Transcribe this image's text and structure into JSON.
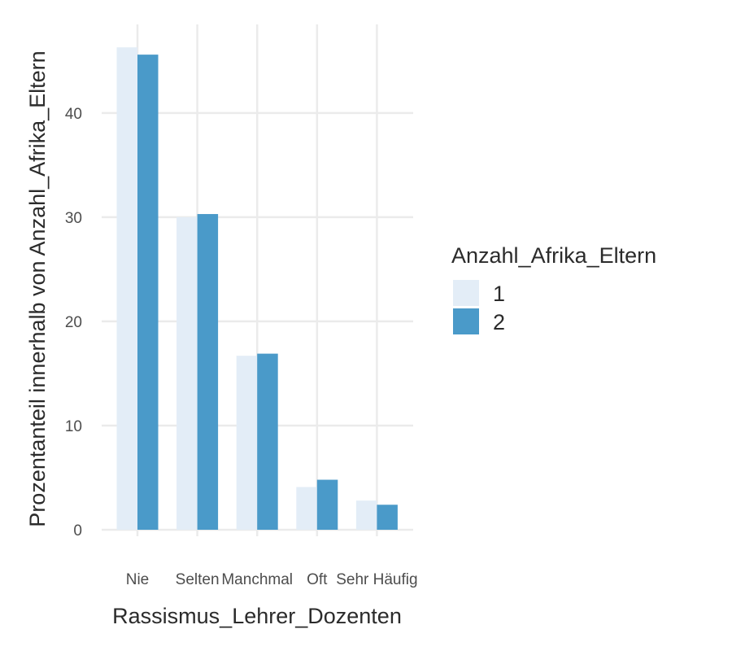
{
  "chart_data": {
    "type": "bar",
    "xlabel": "Rassismus_Lehrer_Dozenten",
    "ylabel": "Prozentanteil innerhalb von Anzahl_Afrika_Eltern",
    "categories": [
      "Nie",
      "Selten",
      "Manchmal",
      "Oft",
      "Sehr Häufig"
    ],
    "series": [
      {
        "name": "1",
        "values": [
          46.3,
          30.0,
          16.7,
          4.1,
          2.8
        ],
        "color": "#e3edf7"
      },
      {
        "name": "2",
        "values": [
          45.6,
          30.3,
          16.9,
          4.8,
          2.4
        ],
        "color": "#4a9ac9"
      }
    ],
    "ylim": [
      0,
      48.5
    ],
    "yticks": [
      0,
      10,
      20,
      30,
      40
    ],
    "grid": true,
    "legend": {
      "title": "Anzahl_Afrika_Eltern",
      "placement": "right"
    }
  }
}
